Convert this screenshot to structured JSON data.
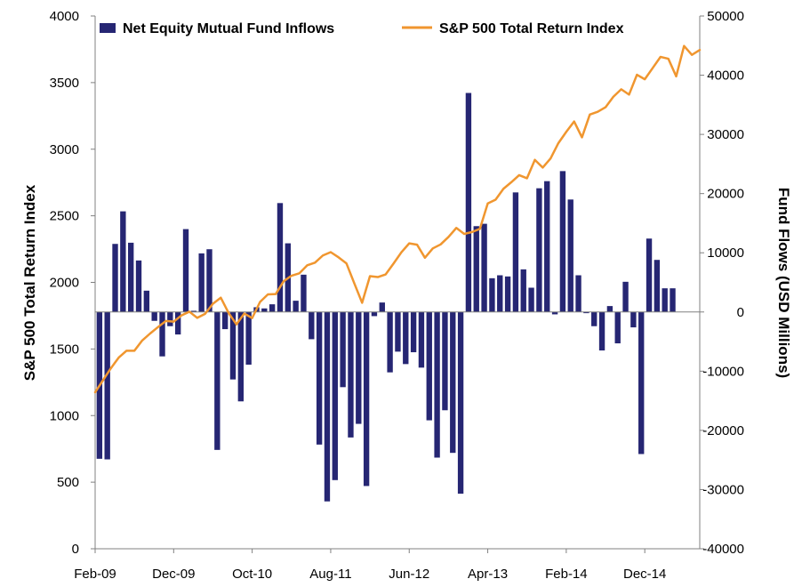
{
  "chart_data": {
    "type": "bar+line",
    "title": "",
    "x_tick_labels": [
      "Feb-09",
      "Dec-09",
      "Oct-10",
      "Aug-11",
      "Jun-12",
      "Apr-13",
      "Feb-14",
      "Dec-14"
    ],
    "y_left": {
      "label": "S&P 500 Total Return Index",
      "min": 0,
      "max": 4000,
      "step": 500
    },
    "y_right": {
      "label": "Fund Flows (USD Millions)",
      "min": -40000,
      "max": 50000,
      "step": 10000
    },
    "legend": {
      "placement": "top",
      "entries": [
        "Net Equity Mutual Fund Inflows",
        "S&P 500 Total Return Index"
      ]
    },
    "colors": {
      "bars": "#262673",
      "line": "#f0962f",
      "axis": "#808080"
    },
    "grid": false,
    "series": [
      {
        "name": "Net Equity Mutual Fund Inflows",
        "type": "bar",
        "axis": "right",
        "values": [
          -24800,
          -24900,
          11500,
          17000,
          11700,
          8700,
          3600,
          -1500,
          -7500,
          -2400,
          -3800,
          14000,
          200,
          9900,
          10600,
          -23300,
          -2900,
          -11400,
          -15100,
          -8900,
          800,
          600,
          1300,
          18400,
          11600,
          1900,
          6300,
          -4600,
          -22400,
          -32000,
          -28400,
          -12700,
          -21200,
          -18900,
          -29400,
          -700,
          1600,
          -10200,
          -6700,
          -8800,
          -6800,
          -9400,
          -18300,
          -24600,
          -16600,
          -23800,
          -30700,
          37000,
          14500,
          14900,
          5700,
          6200,
          6000,
          20200,
          7200,
          4100,
          20900,
          22100,
          -400,
          23800,
          19000,
          6200,
          -200,
          -2400,
          -6500,
          1000,
          -5300,
          5100,
          -2600,
          -24000,
          12400,
          8800,
          4000,
          4000
        ]
      },
      {
        "name": "S&P 500 Total Return Index",
        "type": "line",
        "axis": "left",
        "values": [
          1175,
          1265,
          1355,
          1435,
          1487,
          1487,
          1564,
          1616,
          1664,
          1710,
          1705,
          1752,
          1780,
          1734,
          1764,
          1840,
          1885,
          1770,
          1685,
          1766,
          1732,
          1853,
          1910,
          1912,
          2008,
          2050,
          2068,
          2128,
          2148,
          2202,
          2227,
          2188,
          2143,
          1994,
          1847,
          2047,
          2040,
          2060,
          2141,
          2226,
          2293,
          2283,
          2185,
          2255,
          2285,
          2341,
          2409,
          2364,
          2378,
          2402,
          2593,
          2621,
          2703,
          2752,
          2805,
          2782,
          2920,
          2862,
          2930,
          3046,
          3130,
          3208,
          3089,
          3260,
          3281,
          3315,
          3394,
          3450,
          3410,
          3559,
          3525,
          3609,
          3693,
          3679,
          3547,
          3775,
          3708,
          3745
        ]
      }
    ]
  }
}
